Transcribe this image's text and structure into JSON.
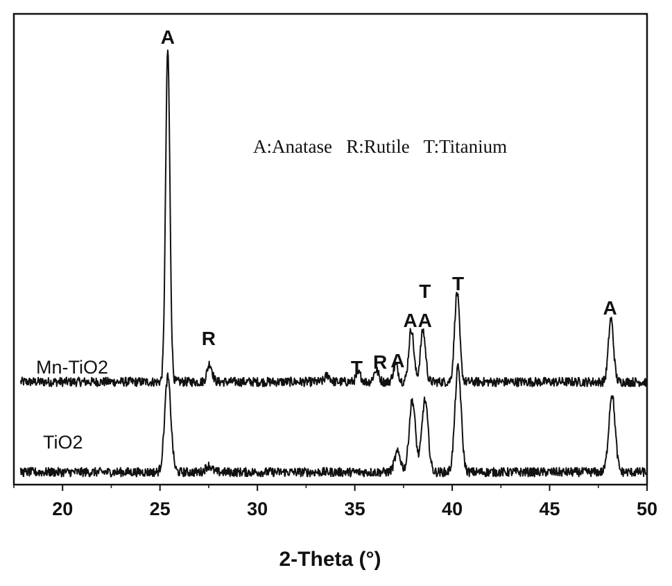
{
  "chart_data": {
    "type": "line",
    "xlabel": "2-Theta (°)",
    "xlim": [
      17.5,
      50
    ],
    "x_ticks": [
      20,
      25,
      30,
      35,
      40,
      45,
      50
    ],
    "legend_text": "A:Anatase   R:Rutile   T:Titanium",
    "series": [
      {
        "name": "Mn-TiO2",
        "baseline": 0.0,
        "peaks": [
          {
            "x": 25.4,
            "height": 1.0
          },
          {
            "x": 27.55,
            "height": 0.055
          },
          {
            "x": 33.6,
            "height": 0.02
          },
          {
            "x": 35.2,
            "height": 0.025
          },
          {
            "x": 36.1,
            "height": 0.035
          },
          {
            "x": 37.1,
            "height": 0.05
          },
          {
            "x": 37.9,
            "height": 0.16
          },
          {
            "x": 38.5,
            "height": 0.155
          },
          {
            "x": 40.25,
            "height": 0.27
          },
          {
            "x": 48.15,
            "height": 0.19
          }
        ]
      },
      {
        "name": "TiO2",
        "baseline": 0.0,
        "peaks": [
          {
            "x": 25.4,
            "height": 0.29
          },
          {
            "x": 27.5,
            "height": 0.02
          },
          {
            "x": 37.2,
            "height": 0.06
          },
          {
            "x": 37.95,
            "height": 0.22
          },
          {
            "x": 38.6,
            "height": 0.22
          },
          {
            "x": 40.3,
            "height": 0.32
          },
          {
            "x": 48.2,
            "height": 0.24
          }
        ]
      }
    ],
    "peak_labels": [
      {
        "text": "A",
        "x": 25.4
      },
      {
        "text": "R",
        "x": 27.5
      },
      {
        "text": "T",
        "x": 35.1
      },
      {
        "text": "R",
        "x": 36.3
      },
      {
        "text": "A",
        "x": 37.2
      },
      {
        "text": "A",
        "x": 37.85
      },
      {
        "text": "A",
        "x": 38.6
      },
      {
        "text": "T",
        "x": 38.6
      },
      {
        "text": "T",
        "x": 40.3
      },
      {
        "text": "A",
        "x": 48.1
      }
    ]
  }
}
